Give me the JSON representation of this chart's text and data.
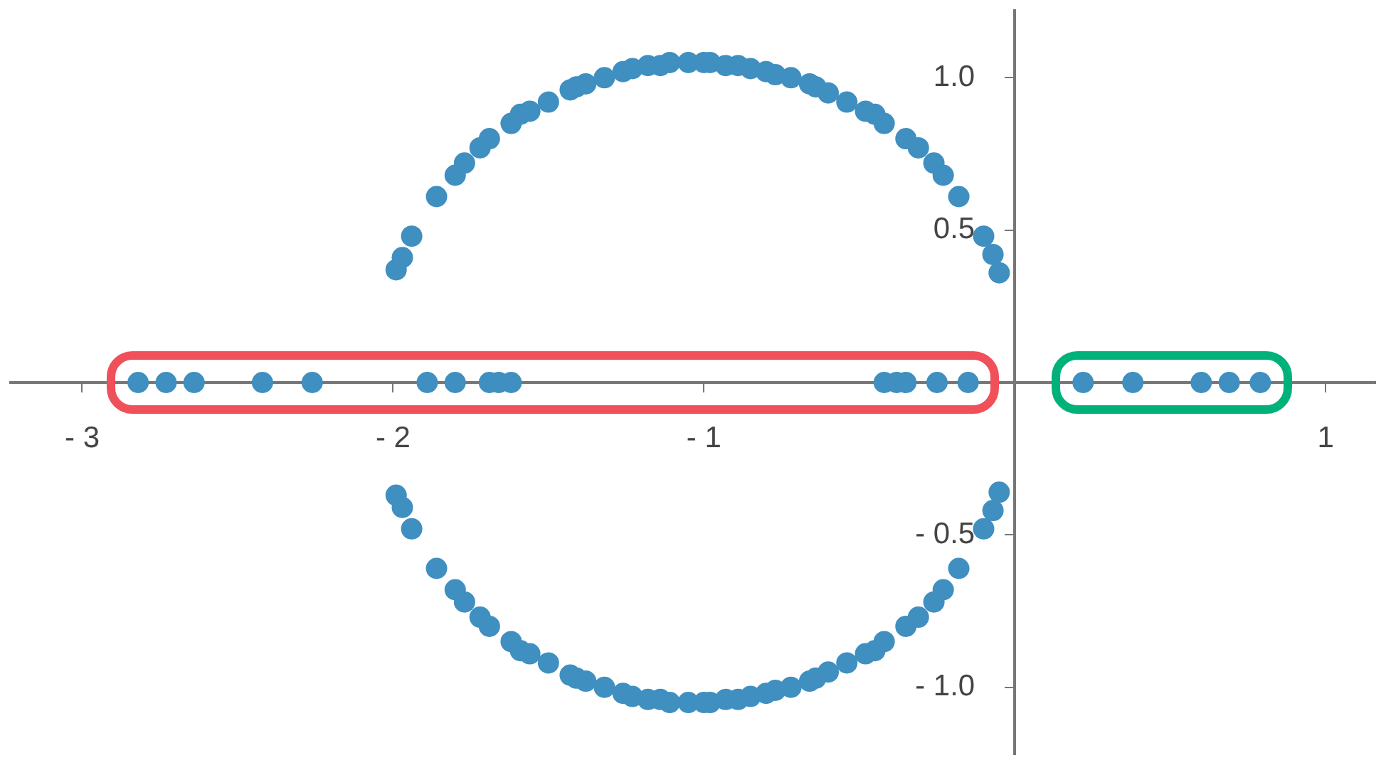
{
  "chart_data": {
    "type": "scatter",
    "marker": "circle",
    "grid": false,
    "legend": false,
    "xlim": [
      -3.23,
      1.16
    ],
    "ylim": [
      -1.22,
      1.22
    ],
    "xticks": [
      {
        "value": -3,
        "label": "- 3"
      },
      {
        "value": -2,
        "label": "- 2"
      },
      {
        "value": -1,
        "label": "- 1"
      },
      1
    ],
    "yticks": [
      {
        "value": -1,
        "label": "- 1.0"
      },
      {
        "value": -0.5,
        "label": "- 0.5"
      },
      {
        "value": 0.5,
        "label": "0.5"
      },
      {
        "value": 1,
        "label": "1.0"
      }
    ],
    "series": [
      {
        "color": "#3f8fc0",
        "x": [
          -2.82,
          -2.73,
          -2.64,
          -2.42,
          -2.26,
          -1.89,
          -1.8,
          -1.69,
          -1.66,
          -1.62,
          -0.42,
          -0.38,
          -0.35,
          -0.25,
          -0.15,
          0.22,
          0.38,
          0.6,
          0.69,
          0.79,
          -1.99,
          -1.97,
          -1.94,
          -1.86,
          -1.8,
          -1.77,
          -1.72,
          -1.69,
          -1.62,
          -1.59,
          -1.56,
          -1.5,
          -1.43,
          -1.41,
          -1.38,
          -1.32,
          -1.26,
          -1.23,
          -1.18,
          -1.14,
          -1.11,
          -1.05,
          -1.0,
          -0.98,
          -0.93,
          -0.89,
          -0.85,
          -0.8,
          -0.77,
          -0.72,
          -0.66,
          -0.64,
          -0.6,
          -0.54,
          -0.48,
          -0.45,
          -0.42,
          -0.35,
          -0.31,
          -0.26,
          -0.23,
          -0.18,
          -0.1,
          -0.07,
          -0.05,
          -1.99,
          -1.97,
          -1.94,
          -1.86,
          -1.8,
          -1.77,
          -1.72,
          -1.69,
          -1.62,
          -1.59,
          -1.56,
          -1.5,
          -1.43,
          -1.41,
          -1.38,
          -1.32,
          -1.26,
          -1.23,
          -1.18,
          -1.14,
          -1.11,
          -1.05,
          -1.0,
          -0.98,
          -0.93,
          -0.89,
          -0.85,
          -0.8,
          -0.77,
          -0.72,
          -0.66,
          -0.64,
          -0.6,
          -0.54,
          -0.48,
          -0.45,
          -0.42,
          -0.35,
          -0.31,
          -0.26,
          -0.23,
          -0.18,
          -0.1,
          -0.07,
          -0.05
        ],
        "values": [
          0,
          0,
          0,
          0,
          0,
          0,
          0,
          0,
          0,
          0,
          0,
          0,
          0,
          0,
          0,
          0,
          0,
          0,
          0,
          0,
          0.37,
          0.41,
          0.48,
          0.61,
          0.68,
          0.72,
          0.77,
          0.8,
          0.85,
          0.88,
          0.89,
          0.92,
          0.96,
          0.97,
          0.98,
          1.0,
          1.02,
          1.03,
          1.04,
          1.04,
          1.05,
          1.05,
          1.05,
          1.05,
          1.04,
          1.04,
          1.03,
          1.02,
          1.01,
          1.0,
          0.98,
          0.97,
          0.95,
          0.92,
          0.89,
          0.88,
          0.85,
          0.8,
          0.77,
          0.72,
          0.68,
          0.61,
          0.48,
          0.42,
          0.36,
          -0.37,
          -0.41,
          -0.48,
          -0.61,
          -0.68,
          -0.72,
          -0.77,
          -0.8,
          -0.85,
          -0.88,
          -0.89,
          -0.92,
          -0.96,
          -0.97,
          -0.98,
          -1.0,
          -1.02,
          -1.03,
          -1.04,
          -1.04,
          -1.05,
          -1.05,
          -1.05,
          -1.05,
          -1.04,
          -1.04,
          -1.03,
          -1.02,
          -1.01,
          -1.0,
          -0.98,
          -0.97,
          -0.95,
          -0.92,
          -0.89,
          -0.88,
          -0.85,
          -0.8,
          -0.77,
          -0.72,
          -0.68,
          -0.61,
          -0.48,
          -0.42,
          -0.36
        ]
      }
    ]
  }
}
